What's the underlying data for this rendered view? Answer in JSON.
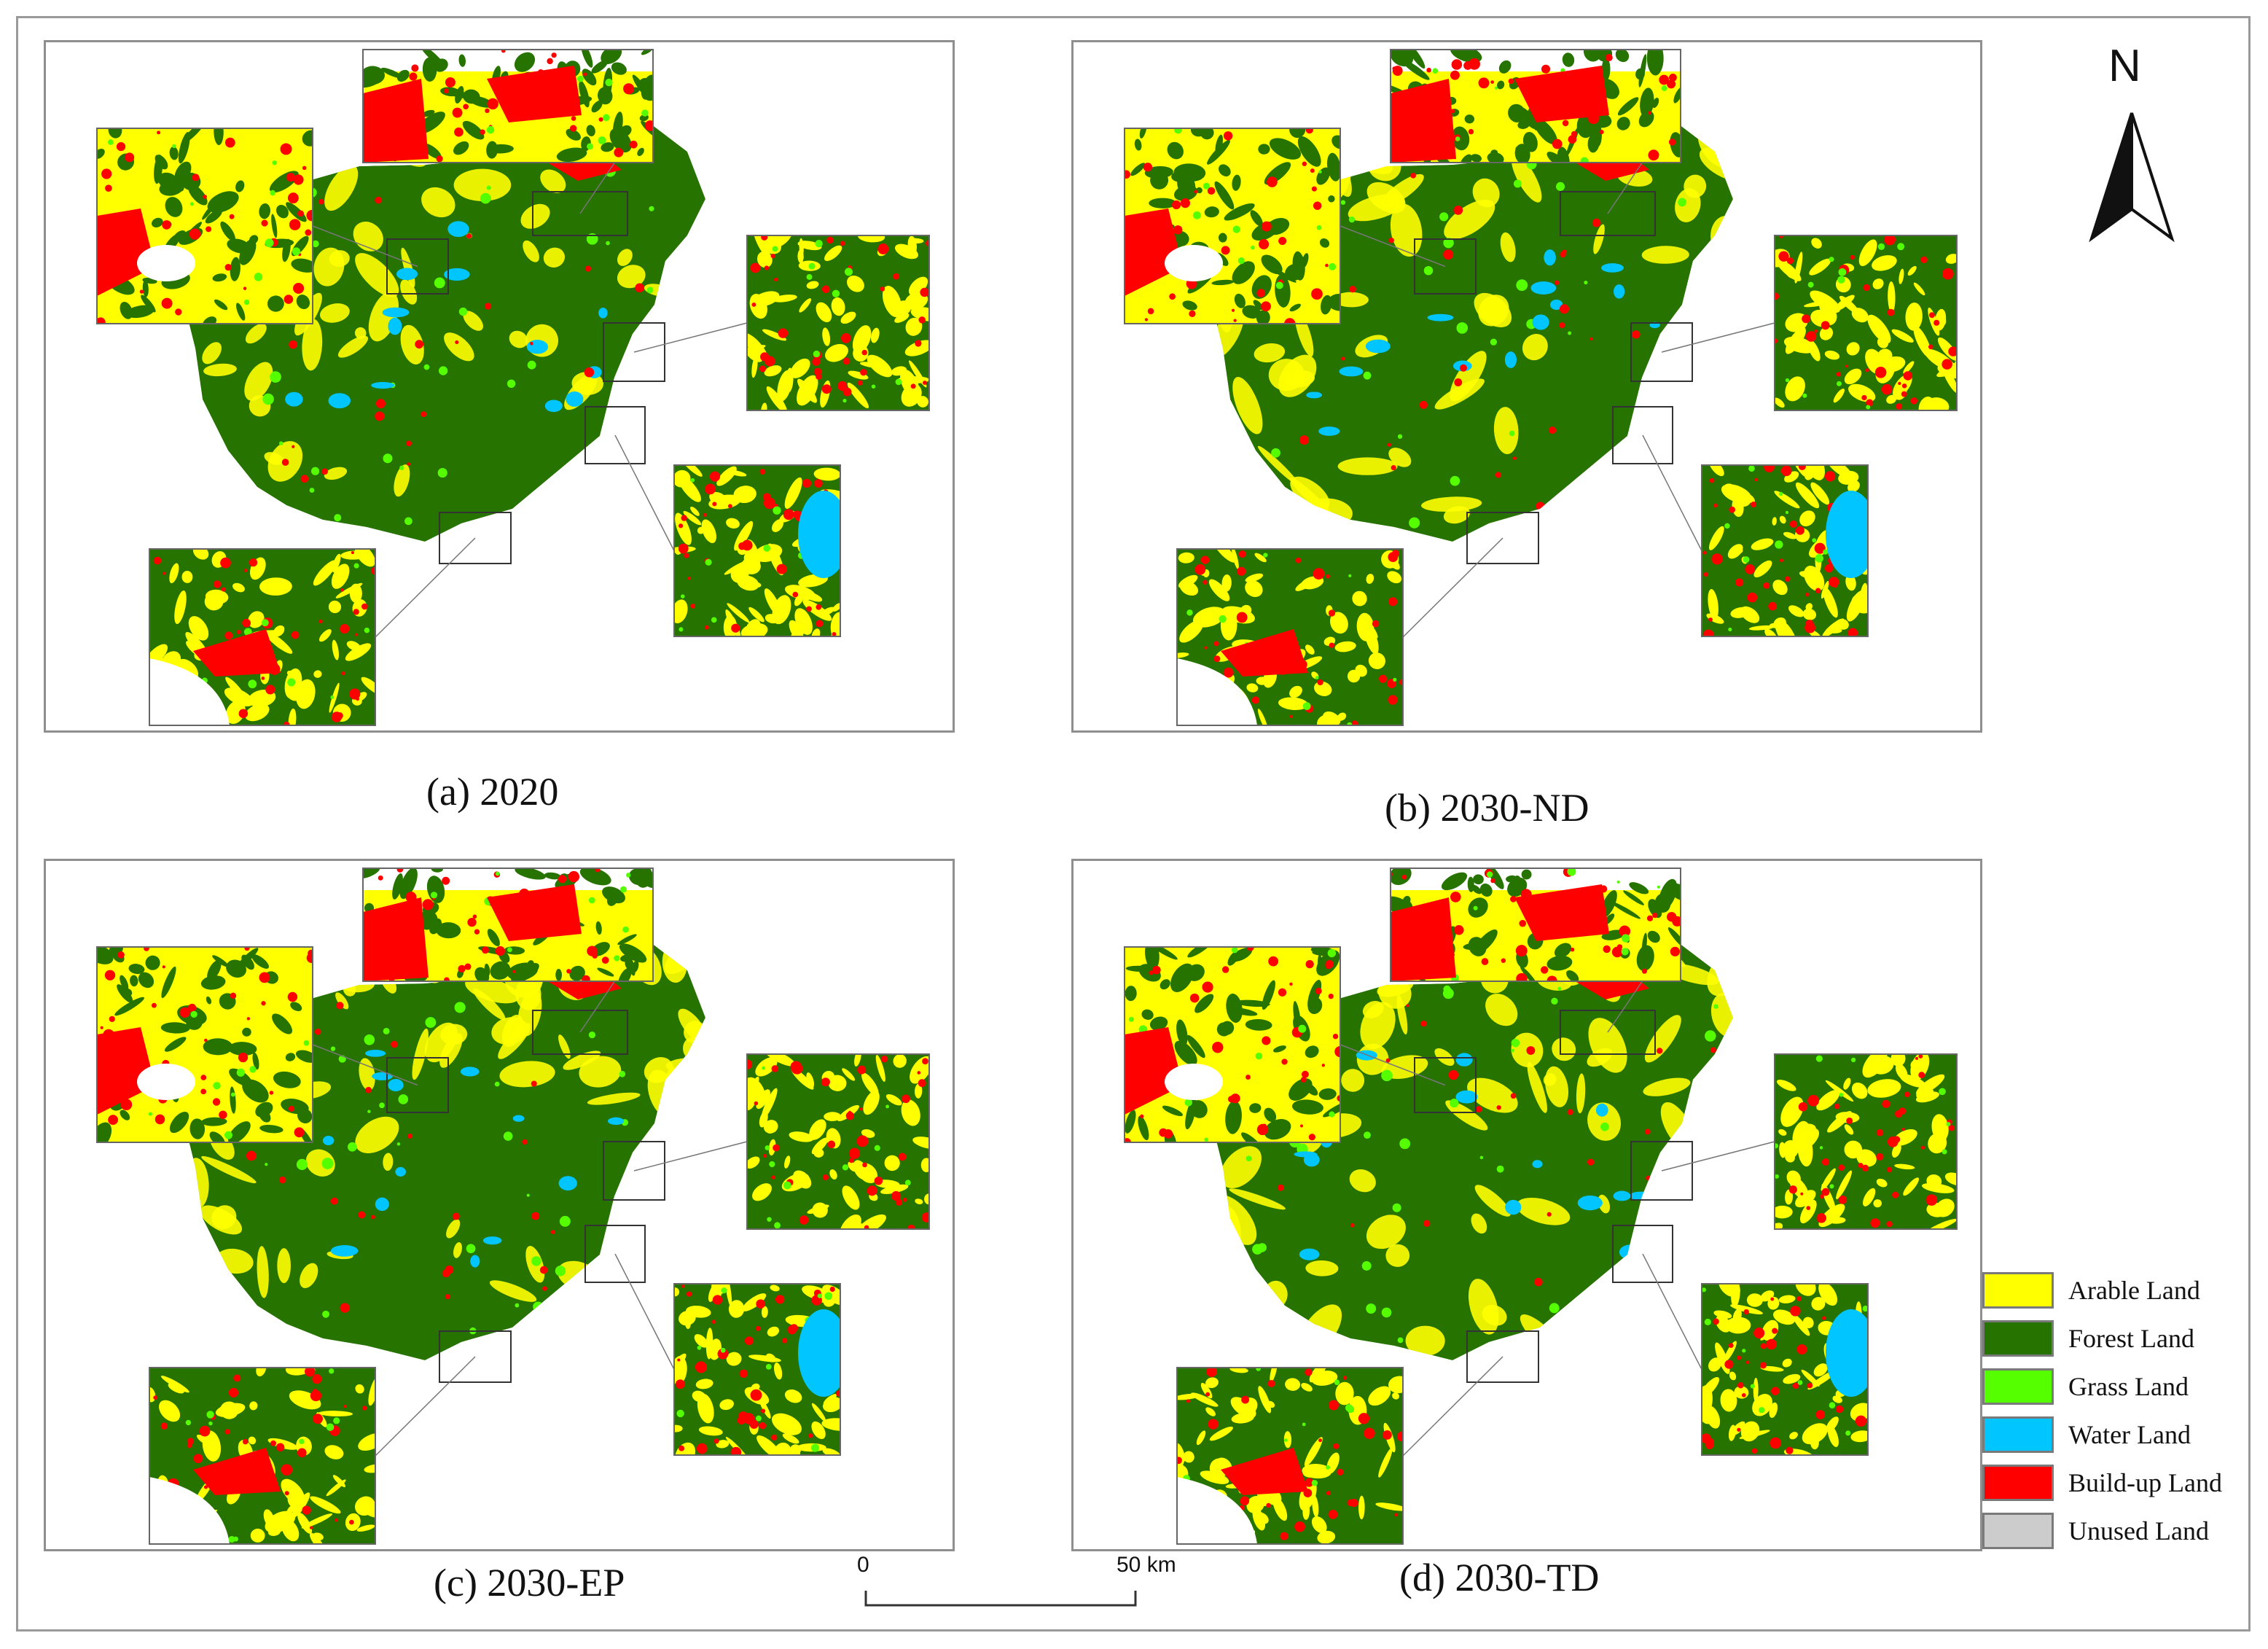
{
  "panels": [
    {
      "id": "a",
      "caption": "(a) 2020"
    },
    {
      "id": "b",
      "caption": "(b) 2030-ND"
    },
    {
      "id": "c",
      "caption": "(c) 2030-EP"
    },
    {
      "id": "d",
      "caption": "(d) 2030-TD"
    }
  ],
  "legend": [
    {
      "label": "Arable Land",
      "color": "#ffff00"
    },
    {
      "label": "Forest Land",
      "color": "#267300"
    },
    {
      "label": "Grass Land",
      "color": "#55ff00"
    },
    {
      "label": "Water Land",
      "color": "#00c5ff"
    },
    {
      "label": "Build-up Land",
      "color": "#ff0000"
    },
    {
      "label": "Unused Land",
      "color": "#cccccc"
    }
  ],
  "scale_bar": {
    "start_label": "0",
    "end_label": "50 km"
  },
  "north_arrow": {
    "label": "N",
    "icon": "north-arrow-icon"
  }
}
